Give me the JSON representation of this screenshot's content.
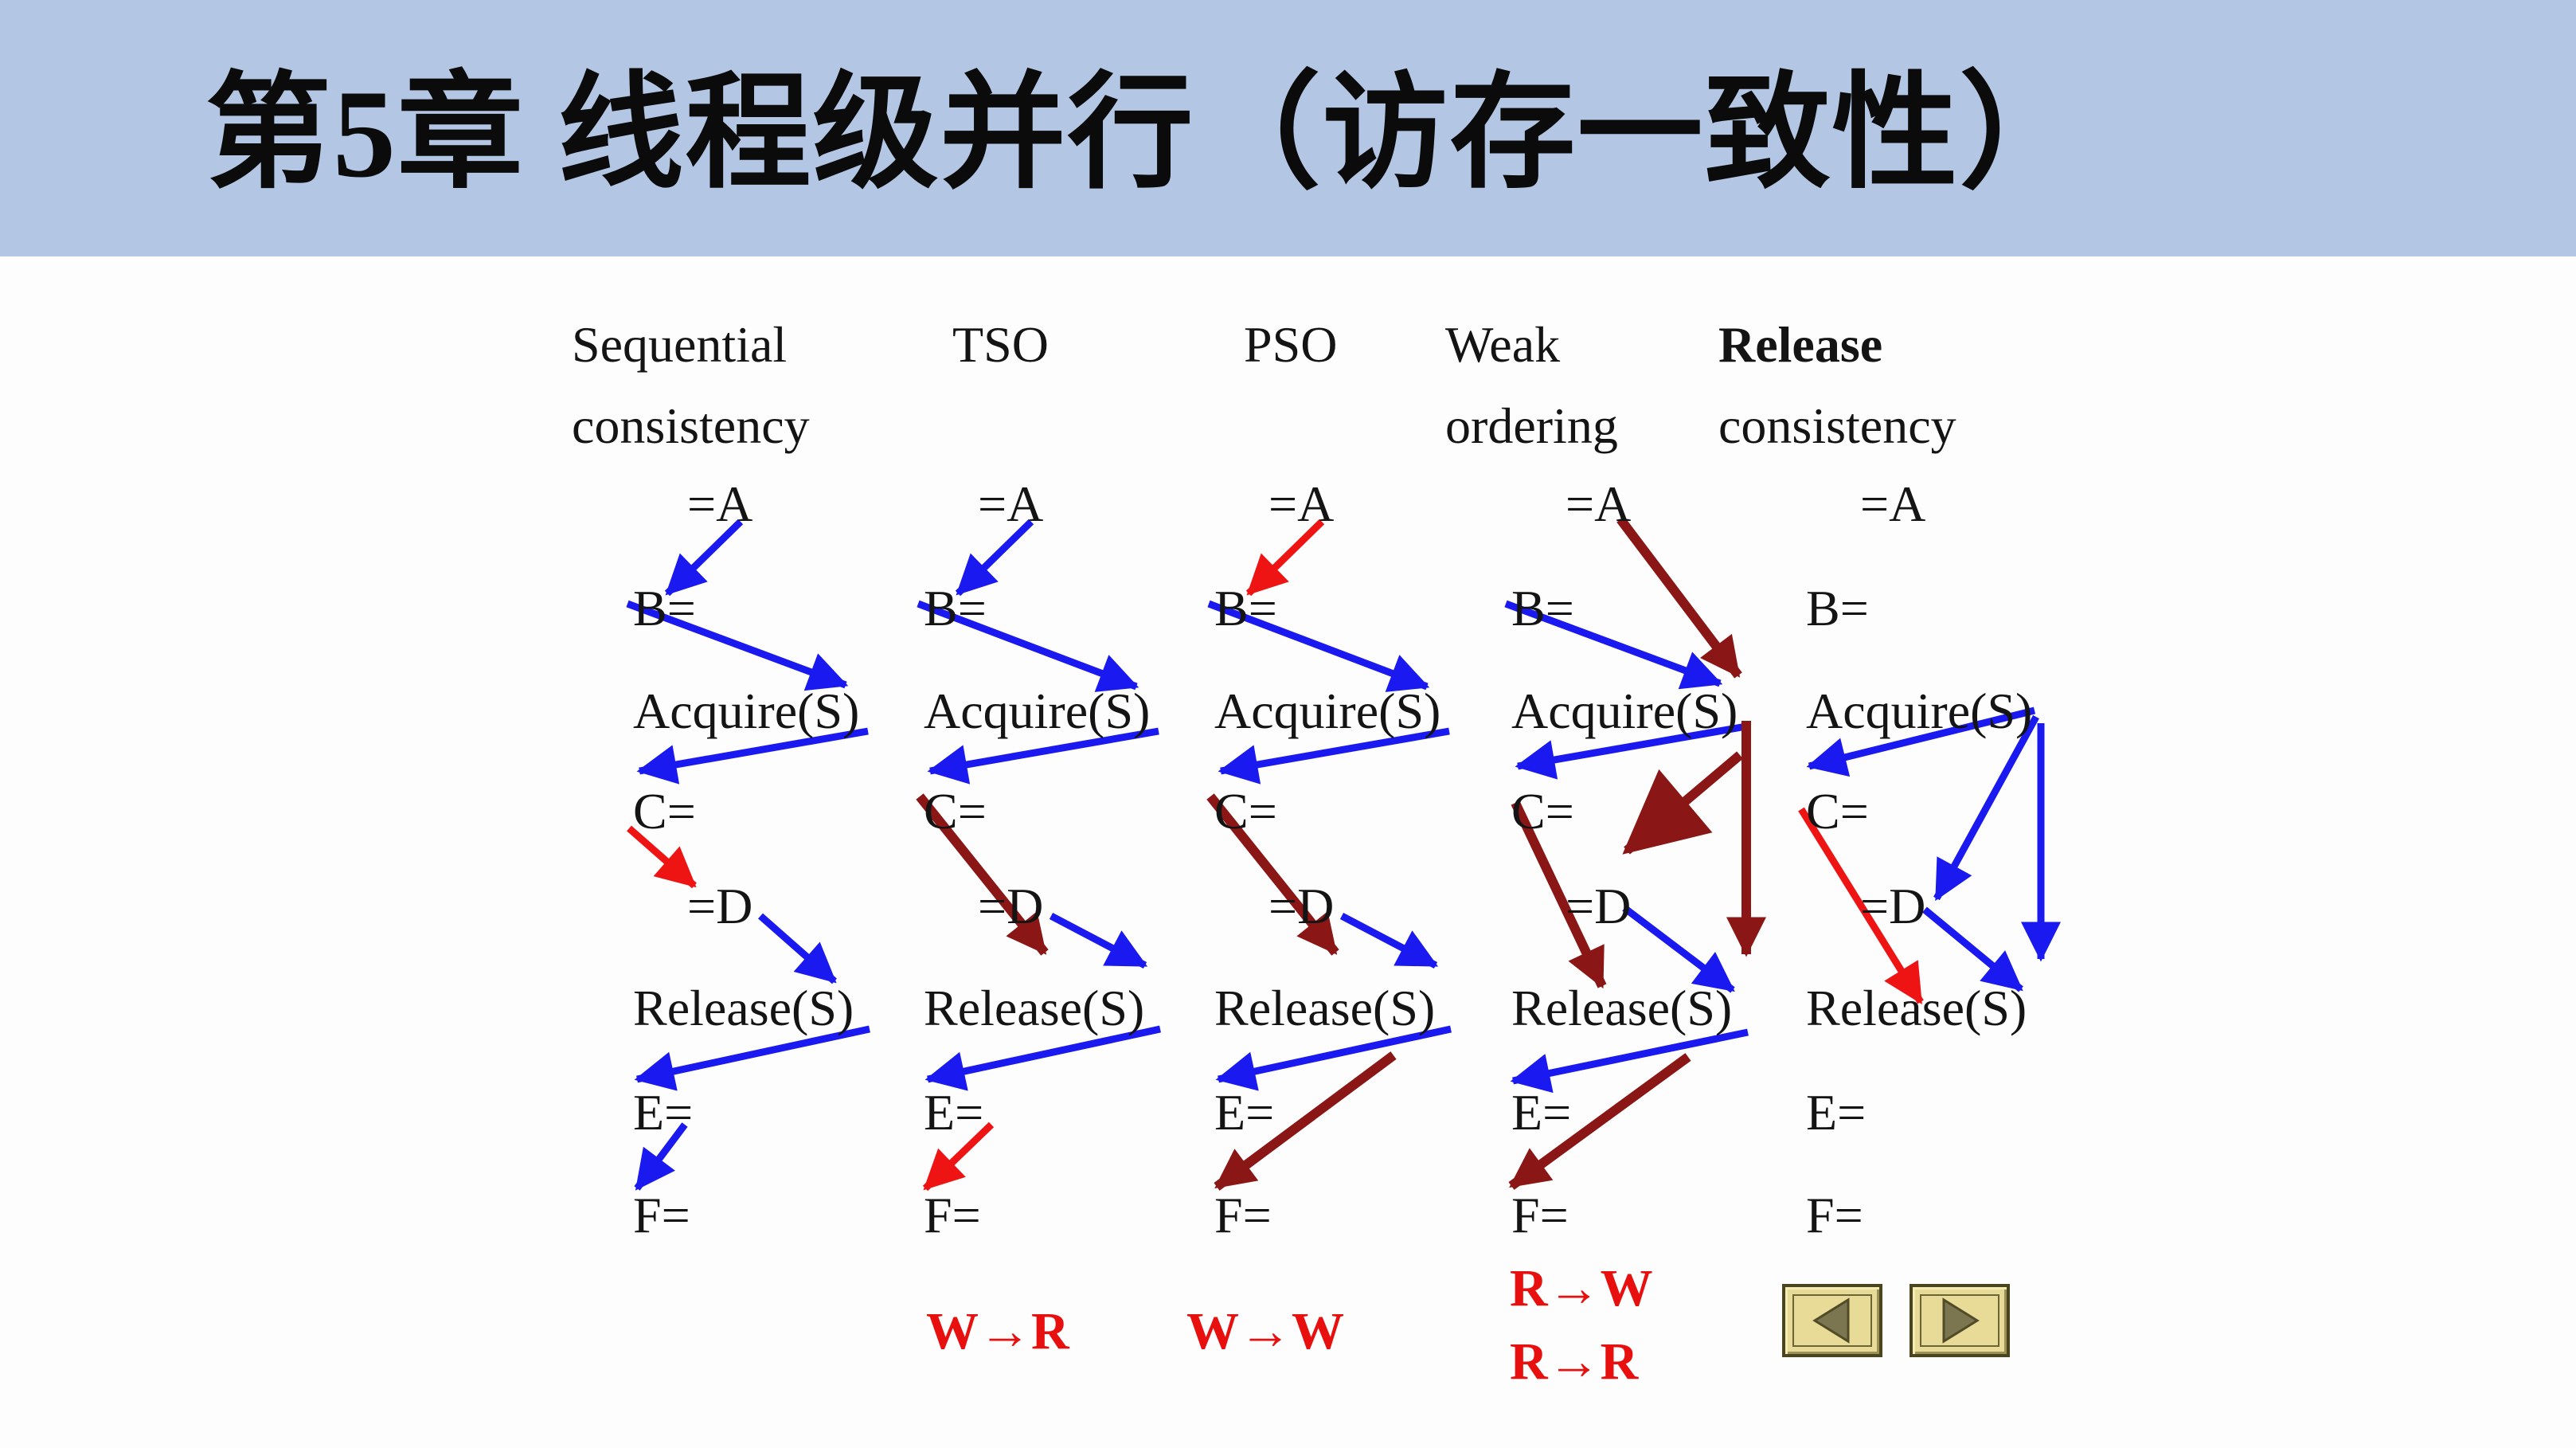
{
  "slide": {
    "title": "第5章 线程级并行（访存一致性）"
  },
  "palette": {
    "title_band": "#b3c6e4",
    "arrow_blue": "#1a1af0",
    "arrow_red": "#ee1414",
    "arrow_maroon": "#8a1616",
    "rule_label_red": "#e8100f",
    "button_face": "#e7db97",
    "button_triangle": "#7b7650"
  },
  "columns": [
    {
      "id": "sequential",
      "header": [
        "Sequential",
        "consistency"
      ],
      "items": [
        "=A",
        "B=",
        "Acquire(S)",
        "C=",
        "=D",
        "Release(S)",
        "E=",
        "F="
      ],
      "bottom_labels": [],
      "edges": [
        {
          "from": "=A",
          "to": "B=",
          "color": "blue"
        },
        {
          "from": "B=",
          "to": "Acquire(S)",
          "color": "blue"
        },
        {
          "from": "Acquire(S)",
          "to": "C=",
          "color": "blue"
        },
        {
          "from": "C=",
          "to": "=D",
          "color": "red"
        },
        {
          "from": "=D",
          "to": "Release(S)",
          "color": "blue"
        },
        {
          "from": "Release(S)",
          "to": "E=",
          "color": "blue"
        },
        {
          "from": "E=",
          "to": "F=",
          "color": "blue"
        }
      ]
    },
    {
      "id": "tso",
      "header": [
        "TSO"
      ],
      "items": [
        "=A",
        "B=",
        "Acquire(S)",
        "C=",
        "=D",
        "Release(S)",
        "E=",
        "F="
      ],
      "bottom_labels": [
        "W→R"
      ],
      "edges": [
        {
          "from": "=A",
          "to": "B=",
          "color": "blue"
        },
        {
          "from": "B=",
          "to": "Acquire(S)",
          "color": "blue"
        },
        {
          "from": "Acquire(S)",
          "to": "C=",
          "color": "blue"
        },
        {
          "from": "C=",
          "to": "Release(S)",
          "color": "maroon"
        },
        {
          "from": "=D",
          "to": "Release(S)",
          "color": "blue"
        },
        {
          "from": "Release(S)",
          "to": "E=",
          "color": "blue"
        },
        {
          "from": "E=",
          "to": "F=",
          "color": "red"
        }
      ]
    },
    {
      "id": "pso",
      "header": [
        "PSO"
      ],
      "items": [
        "=A",
        "B=",
        "Acquire(S)",
        "C=",
        "=D",
        "Release(S)",
        "E=",
        "F="
      ],
      "bottom_labels": [
        "W→W"
      ],
      "edges": [
        {
          "from": "=A",
          "to": "B=",
          "color": "red"
        },
        {
          "from": "B=",
          "to": "Acquire(S)",
          "color": "blue"
        },
        {
          "from": "Acquire(S)",
          "to": "C=",
          "color": "blue"
        },
        {
          "from": "C=",
          "to": "Release(S)",
          "color": "maroon"
        },
        {
          "from": "=D",
          "to": "Release(S)",
          "color": "blue"
        },
        {
          "from": "Release(S)",
          "to": "E=",
          "color": "blue"
        },
        {
          "from": "Release(S)",
          "to": "F=",
          "color": "maroon"
        }
      ]
    },
    {
      "id": "weak-ordering",
      "header": [
        "Weak",
        "ordering"
      ],
      "items": [
        "=A",
        "B=",
        "Acquire(S)",
        "C=",
        "=D",
        "Release(S)",
        "E=",
        "F="
      ],
      "bottom_labels": [
        "R→W",
        "R→R"
      ],
      "edges": [
        {
          "from": "=A",
          "to": "Acquire(S)",
          "color": "maroon"
        },
        {
          "from": "B=",
          "to": "Acquire(S)",
          "color": "blue"
        },
        {
          "from": "Acquire(S)",
          "to": "C=",
          "color": "blue"
        },
        {
          "from": "Acquire(S)",
          "to": "=D",
          "color": "maroon",
          "big_head": true
        },
        {
          "from": "Acquire(S)",
          "to": "Release(S)",
          "color": "maroon"
        },
        {
          "from": "C=",
          "to": "Release(S)",
          "color": "maroon"
        },
        {
          "from": "=D",
          "to": "Release(S)",
          "color": "blue"
        },
        {
          "from": "Release(S)",
          "to": "E=",
          "color": "blue"
        },
        {
          "from": "Release(S)",
          "to": "F=",
          "color": "maroon"
        }
      ]
    },
    {
      "id": "release-consistency",
      "header": [
        "Release",
        "consistency"
      ],
      "items": [
        "=A",
        "B=",
        "Acquire(S)",
        "C=",
        "=D",
        "Release(S)",
        "E=",
        "F="
      ],
      "bottom_labels": [],
      "edges": [
        {
          "from": "Acquire(S)",
          "to": "C=",
          "color": "blue"
        },
        {
          "from": "Acquire(S)",
          "to": "=D",
          "color": "blue"
        },
        {
          "from": "Acquire(S)",
          "to": "Release(S)",
          "color": "blue"
        },
        {
          "from": "C=",
          "to": "Release(S)",
          "color": "red"
        },
        {
          "from": "=D",
          "to": "Release(S)",
          "color": "blue"
        }
      ]
    }
  ],
  "nav": {
    "prev_icon": "left-triangle",
    "next_icon": "right-triangle"
  }
}
